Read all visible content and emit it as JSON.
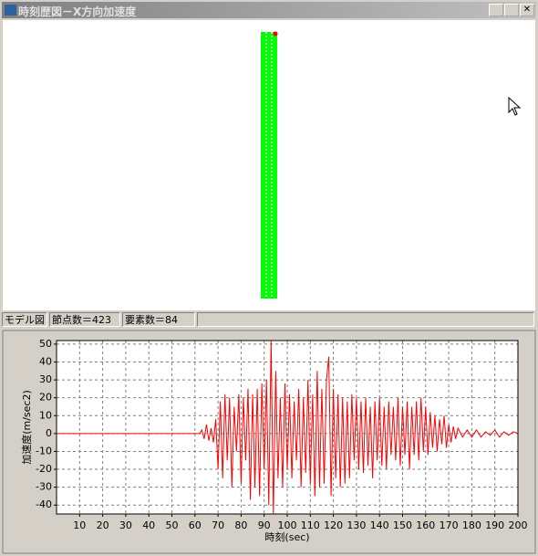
{
  "window": {
    "title": "時刻歴図－X方向加速度"
  },
  "status_bar": [
    "モデル図",
    "節点数＝423",
    "要素数＝84"
  ],
  "chart_data": {
    "type": "line",
    "xlabel": "時刻(sec)",
    "ylabel": "加速度(m/sec2)",
    "xlim": [
      0,
      200
    ],
    "ylim": [
      -45,
      52
    ],
    "xticks": [
      10,
      20,
      30,
      40,
      50,
      60,
      70,
      80,
      90,
      100,
      110,
      120,
      130,
      140,
      150,
      160,
      170,
      180,
      190,
      200
    ],
    "yticks": [
      -40,
      -30,
      -20,
      -10,
      0,
      10,
      20,
      30,
      40,
      50
    ],
    "grid": true,
    "x": [
      0,
      62,
      63,
      64,
      65,
      66,
      67,
      68,
      69,
      70,
      71,
      72,
      73,
      74,
      75,
      76,
      77,
      78,
      79,
      80,
      81,
      82,
      83,
      84,
      85,
      86,
      87,
      88,
      89,
      90,
      91,
      92,
      93,
      94,
      95,
      96,
      97,
      98,
      99,
      100,
      101,
      102,
      103,
      104,
      105,
      106,
      107,
      108,
      109,
      110,
      111,
      112,
      113,
      114,
      115,
      116,
      117,
      118,
      119,
      120,
      121,
      122,
      123,
      124,
      125,
      126,
      127,
      128,
      129,
      130,
      131,
      132,
      133,
      134,
      135,
      136,
      137,
      138,
      139,
      140,
      141,
      142,
      143,
      144,
      145,
      146,
      147,
      148,
      149,
      150,
      151,
      152,
      153,
      154,
      155,
      156,
      157,
      158,
      159,
      160,
      161,
      162,
      163,
      164,
      165,
      166,
      167,
      168,
      169,
      170,
      171,
      172,
      173,
      174,
      176,
      178,
      180,
      182,
      184,
      186,
      188,
      190,
      192,
      194,
      196,
      198,
      200
    ],
    "series": [
      {
        "color": "#ff0000",
        "values": [
          0,
          0,
          2,
          -3,
          5,
          -4,
          3,
          -5,
          8,
          -20,
          18,
          -25,
          22,
          -15,
          20,
          -30,
          15,
          -10,
          22,
          -28,
          20,
          -15,
          25,
          -37,
          22,
          -30,
          25,
          -35,
          28,
          -20,
          30,
          -40,
          52,
          -45,
          35,
          -25,
          20,
          -30,
          28,
          -20,
          22,
          -25,
          18,
          -15,
          25,
          -30,
          20,
          -22,
          30,
          -28,
          22,
          -35,
          35,
          -30,
          25,
          -28,
          30,
          43,
          -35,
          25,
          -25,
          22,
          -30,
          20,
          -28,
          18,
          -25,
          22,
          -15,
          20,
          -20,
          18,
          -22,
          20,
          -18,
          15,
          -25,
          18,
          -15,
          20,
          -18,
          15,
          -20,
          18,
          -12,
          15,
          -15,
          20,
          -18,
          15,
          -12,
          18,
          -20,
          15,
          -12,
          18,
          -15,
          20,
          -10,
          15,
          -12,
          12,
          -8,
          10,
          -10,
          8,
          -6,
          10,
          -8,
          5,
          -5,
          4,
          -3,
          3,
          -2,
          2,
          -2,
          2,
          -2,
          1,
          -1,
          2,
          -2,
          1,
          -1,
          1,
          0
        ]
      }
    ]
  }
}
